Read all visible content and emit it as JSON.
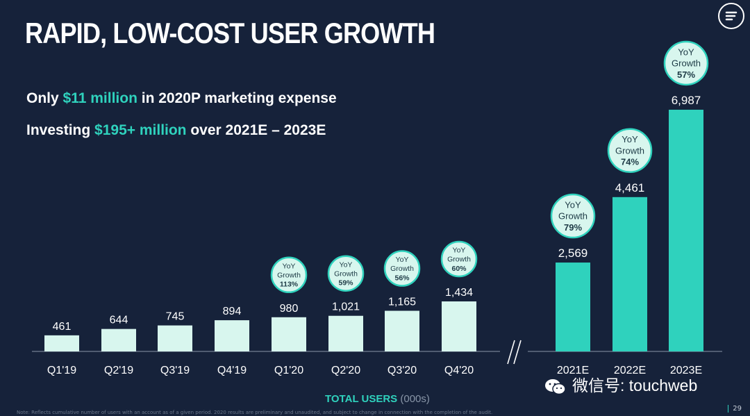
{
  "title": "RAPID, LOW-COST USER GROWTH",
  "lines": [
    {
      "pre": "Only ",
      "hl": "$11 million",
      "post": " in 2020P marketing expense"
    },
    {
      "pre": "Investing ",
      "hl": "$195+ million",
      "post": " over 2021E – 2023E"
    }
  ],
  "caption": {
    "strong": "TOTAL USERS",
    "unit": " (000s)"
  },
  "note": "Note: Reflects cumulative number of users with an account as of a given period. 2020 results are preliminary and unaudited, and subject to change in connection with the completion of the audit.",
  "page_number": "29",
  "watermark": "微信号: touchweb",
  "colors": {
    "background": "#16223a",
    "actual_bar": "#d8f6ee",
    "estimate_bar": "#2fd2bd",
    "accent": "#2fd2bd",
    "bubble": "#d8f6ee"
  },
  "icons": [
    "logo-icon",
    "wechat-icon"
  ],
  "chart_data": {
    "type": "bar",
    "categories": [
      "Q1'19",
      "Q2'19",
      "Q3'19",
      "Q4'19",
      "Q1'20",
      "Q2'20",
      "Q3'20",
      "Q4'20",
      "2021E",
      "2022E",
      "2023E"
    ],
    "values": [
      461,
      644,
      745,
      894,
      980,
      1021,
      1165,
      1434,
      2569,
      4461,
      6987
    ],
    "labels": [
      "461",
      "644",
      "745",
      "894",
      "980",
      "1,021",
      "1,165",
      "1,434",
      "2,569",
      "4,461",
      "6,987"
    ],
    "yoy_growth": [
      null,
      null,
      null,
      null,
      "113%",
      "59%",
      "56%",
      "60%",
      "79%",
      "74%",
      "57%"
    ],
    "yoy_label": [
      "YoY",
      "Growth"
    ],
    "axis_break": "//",
    "xlabel": "TOTAL USERS (000s)",
    "ylabel": "",
    "grid": false,
    "legend": "none"
  }
}
